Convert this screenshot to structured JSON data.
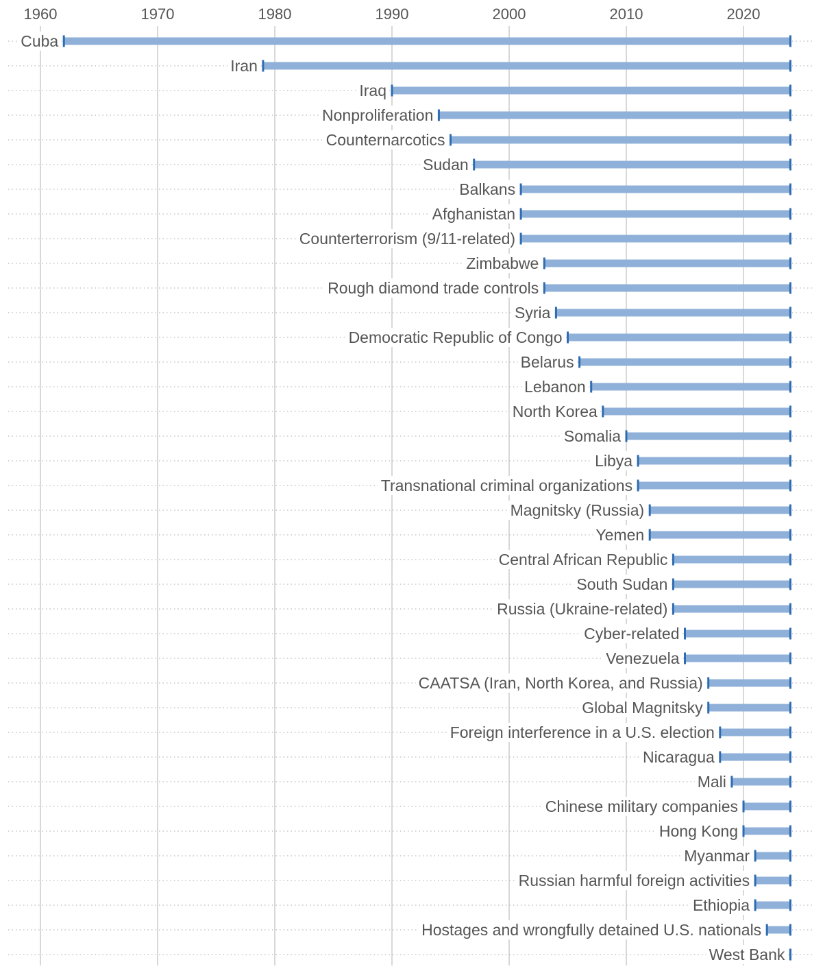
{
  "chart_data": {
    "type": "bar",
    "subtype": "range",
    "title": "",
    "xlabel": "",
    "ylabel": "",
    "x_ticks": [
      1960,
      1970,
      1980,
      1990,
      2000,
      2010,
      2020
    ],
    "xlim": [
      1958,
      2026
    ],
    "grid": true,
    "legend": "none",
    "colors": {
      "bar": "#8fb0d8",
      "cap": "#2e6cb2",
      "text": "#555555",
      "grid": "#cccccc"
    },
    "end_year": 2024,
    "programs": [
      {
        "name": "Cuba",
        "start": 1962
      },
      {
        "name": "Iran",
        "start": 1979
      },
      {
        "name": "Iraq",
        "start": 1990
      },
      {
        "name": "Nonproliferation",
        "start": 1994
      },
      {
        "name": "Counternarcotics",
        "start": 1995
      },
      {
        "name": "Sudan",
        "start": 1997
      },
      {
        "name": "Balkans",
        "start": 2001
      },
      {
        "name": "Afghanistan",
        "start": 2001
      },
      {
        "name": "Counterterrorism (9/11-related)",
        "start": 2001
      },
      {
        "name": "Zimbabwe",
        "start": 2003
      },
      {
        "name": "Rough diamond trade controls",
        "start": 2003
      },
      {
        "name": "Syria",
        "start": 2004
      },
      {
        "name": "Democratic Republic of Congo",
        "start": 2005
      },
      {
        "name": "Belarus",
        "start": 2006
      },
      {
        "name": "Lebanon",
        "start": 2007
      },
      {
        "name": "North Korea",
        "start": 2008
      },
      {
        "name": "Somalia",
        "start": 2010
      },
      {
        "name": "Libya",
        "start": 2011
      },
      {
        "name": "Transnational criminal organizations",
        "start": 2011
      },
      {
        "name": "Magnitsky (Russia)",
        "start": 2012
      },
      {
        "name": "Yemen",
        "start": 2012
      },
      {
        "name": "Central African Republic",
        "start": 2014
      },
      {
        "name": "South Sudan",
        "start": 2014
      },
      {
        "name": "Russia (Ukraine-related)",
        "start": 2014
      },
      {
        "name": "Cyber-related",
        "start": 2015
      },
      {
        "name": "Venezuela",
        "start": 2015
      },
      {
        "name": "CAATSA (Iran, North Korea, and Russia)",
        "start": 2017
      },
      {
        "name": "Global Magnitsky",
        "start": 2017
      },
      {
        "name": "Foreign interference in a U.S. election",
        "start": 2018
      },
      {
        "name": "Nicaragua",
        "start": 2018
      },
      {
        "name": "Mali",
        "start": 2019
      },
      {
        "name": "Chinese military companies",
        "start": 2020
      },
      {
        "name": "Hong Kong",
        "start": 2020
      },
      {
        "name": "Myanmar",
        "start": 2021
      },
      {
        "name": "Russian harmful foreign activities",
        "start": 2021
      },
      {
        "name": "Ethiopia",
        "start": 2021
      },
      {
        "name": "Hostages and wrongfully detained U.S. nationals",
        "start": 2022
      },
      {
        "name": "West Bank",
        "start": 2024
      }
    ]
  }
}
